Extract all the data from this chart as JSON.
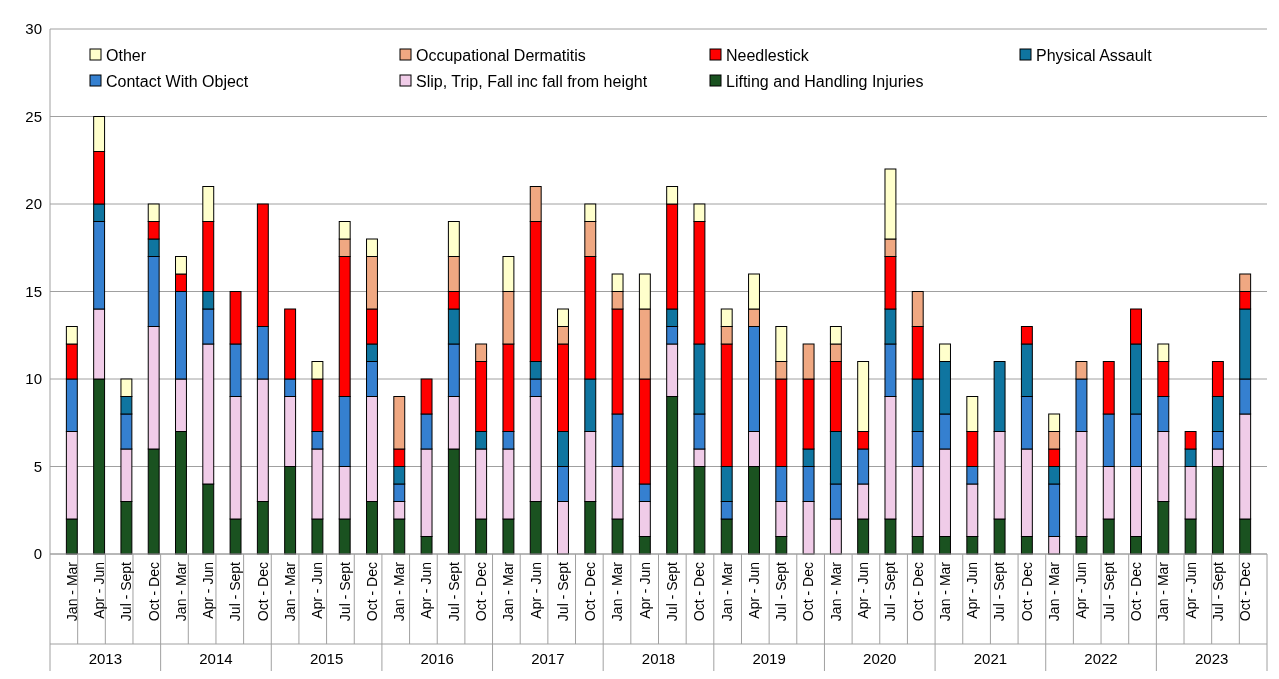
{
  "chart_data": {
    "type": "bar",
    "stacked": true,
    "categories": [
      "Jan - Mar",
      "Apr - Jun",
      "Jul - Sept",
      "Oct - Dec",
      "Jan - Mar",
      "Apr - Jun",
      "Jul - Sept",
      "Oct - Dec",
      "Jan - Mar",
      "Apr - Jun",
      "Jul - Sept",
      "Oct - Dec",
      "Jan - Mar",
      "Apr - Jun",
      "Jul - Sept",
      "Oct - Dec",
      "Jan - Mar",
      "Apr - Jun",
      "Jul - Sept",
      "Oct - Dec",
      "Jan - Mar",
      "Apr - Jun",
      "Jul - Sept",
      "Oct - Dec",
      "Jan - Mar",
      "Apr - Jun",
      "Jul - Sept",
      "Oct - Dec",
      "Jan - Mar",
      "Apr - Jun",
      "Jul - Sept",
      "Oct - Dec",
      "Jan - Mar",
      "Apr - Jun",
      "Jul - Sept",
      "Oct - Dec",
      "Jan - Mar",
      "Apr - Jun",
      "Jul - Sept",
      "Oct - Dec",
      "Jan - Mar",
      "Apr - Jun",
      "Jul - Sept",
      "Oct - Dec"
    ],
    "annotations": [
      "2013",
      "2014",
      "2015",
      "2016",
      "2017",
      "2018",
      "2019",
      "2020",
      "2021",
      "2022",
      "2023"
    ],
    "series": [
      {
        "name": "Lifting and Handling Injuries",
        "color": "#1a5220",
        "values": [
          2,
          10,
          3,
          6,
          7,
          4,
          2,
          3,
          5,
          2,
          2,
          3,
          2,
          1,
          6,
          2,
          2,
          3,
          0,
          3,
          2,
          1,
          9,
          5,
          2,
          5,
          1,
          0,
          0,
          2,
          2,
          1,
          1,
          1,
          2,
          1,
          0,
          1,
          2,
          1,
          3,
          2,
          5,
          2
        ]
      },
      {
        "name": "Slip, Trip, Fall inc fall from height",
        "color": "#f0cce8",
        "values": [
          5,
          4,
          3,
          7,
          3,
          8,
          7,
          7,
          4,
          4,
          3,
          6,
          1,
          5,
          3,
          4,
          4,
          6,
          3,
          4,
          3,
          2,
          3,
          1,
          0,
          2,
          2,
          3,
          2,
          2,
          7,
          4,
          5,
          3,
          5,
          5,
          1,
          6,
          3,
          4,
          4,
          3,
          1,
          6
        ]
      },
      {
        "name": "Contact With Object",
        "color": "#3580d0",
        "values": [
          3,
          5,
          2,
          4,
          5,
          2,
          3,
          3,
          1,
          1,
          4,
          2,
          1,
          2,
          3,
          0,
          1,
          1,
          2,
          0,
          3,
          1,
          1,
          2,
          1,
          6,
          2,
          2,
          2,
          2,
          3,
          2,
          2,
          1,
          0,
          3,
          3,
          3,
          3,
          3,
          2,
          0,
          1,
          2
        ]
      },
      {
        "name": "Physical Assault",
        "color": "#0f75a0",
        "values": [
          0,
          1,
          1,
          1,
          0,
          1,
          0,
          0,
          0,
          0,
          0,
          1,
          1,
          0,
          2,
          1,
          0,
          1,
          2,
          3,
          0,
          0,
          1,
          4,
          2,
          0,
          0,
          1,
          3,
          0,
          2,
          3,
          3,
          0,
          4,
          3,
          1,
          0,
          0,
          4,
          0,
          1,
          2,
          4
        ]
      },
      {
        "name": "Needlestick",
        "color": "#ff0000",
        "values": [
          2,
          3,
          0,
          1,
          1,
          4,
          3,
          7,
          4,
          3,
          8,
          2,
          1,
          2,
          1,
          4,
          5,
          8,
          5,
          7,
          6,
          6,
          6,
          7,
          7,
          0,
          5,
          4,
          4,
          1,
          3,
          3,
          0,
          2,
          0,
          1,
          1,
          0,
          3,
          2,
          2,
          1,
          2,
          1
        ]
      },
      {
        "name": "Occupational Dermatitis",
        "color": "#f0a882",
        "values": [
          0,
          0,
          0,
          0,
          0,
          0,
          0,
          0,
          0,
          0,
          1,
          3,
          3,
          0,
          2,
          1,
          3,
          2,
          1,
          2,
          1,
          4,
          0,
          0,
          1,
          1,
          1,
          2,
          1,
          0,
          1,
          2,
          0,
          0,
          0,
          0,
          1,
          1,
          0,
          0,
          0,
          0,
          0,
          1
        ]
      },
      {
        "name": "Other",
        "color": "#ffffcc",
        "values": [
          1,
          2,
          1,
          1,
          1,
          2,
          0,
          0,
          0,
          1,
          1,
          1,
          0,
          0,
          2,
          0,
          2,
          0,
          1,
          1,
          1,
          2,
          1,
          1,
          1,
          2,
          2,
          0,
          1,
          4,
          4,
          0,
          1,
          2,
          0,
          0,
          1,
          0,
          0,
          0,
          1,
          0,
          0,
          0
        ]
      }
    ],
    "ylim": [
      0,
      30
    ],
    "yticks": [
      0,
      5,
      10,
      15,
      20,
      25,
      30
    ],
    "grid": "y",
    "legend": "top"
  }
}
